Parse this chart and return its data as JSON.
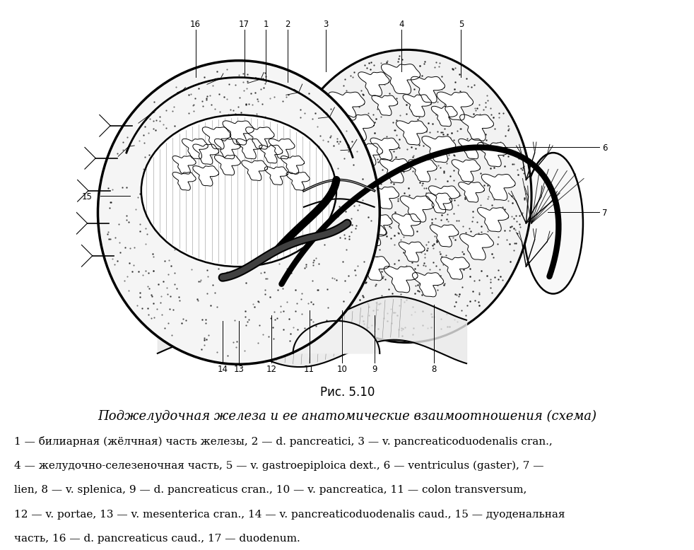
{
  "figure_caption": "Рис. 5.10",
  "figure_title": "Поджелудочная железа и ее анатомические взаимоотношения (схема)",
  "legend_lines": [
    "1 — билиарная (жёлчная) часть железы, 2 — d. pancreatici, 3 — v. pancreaticoduodenalis cran.,",
    "4 — желудочно-селезеночная часть, 5 — v. gastroepiploica dext., 6 — ventriculus (gaster), 7 —",
    "lien, 8 — v. splenica, 9 — d. pancreaticus cran., 10 — v. pancreatica, 11 — colon transversum,",
    "12 — v. portae, 13 — v. mesenterica cran., 14 — v. pancreaticoduodenalis caud., 15 — дуоденальная",
    "часть, 16 — d. pancreaticus caud., 17 — duodenum."
  ],
  "bg_color": "#ffffff",
  "text_color": "#000000",
  "caption_fontsize": 12,
  "title_fontsize": 13,
  "legend_fontsize": 11
}
